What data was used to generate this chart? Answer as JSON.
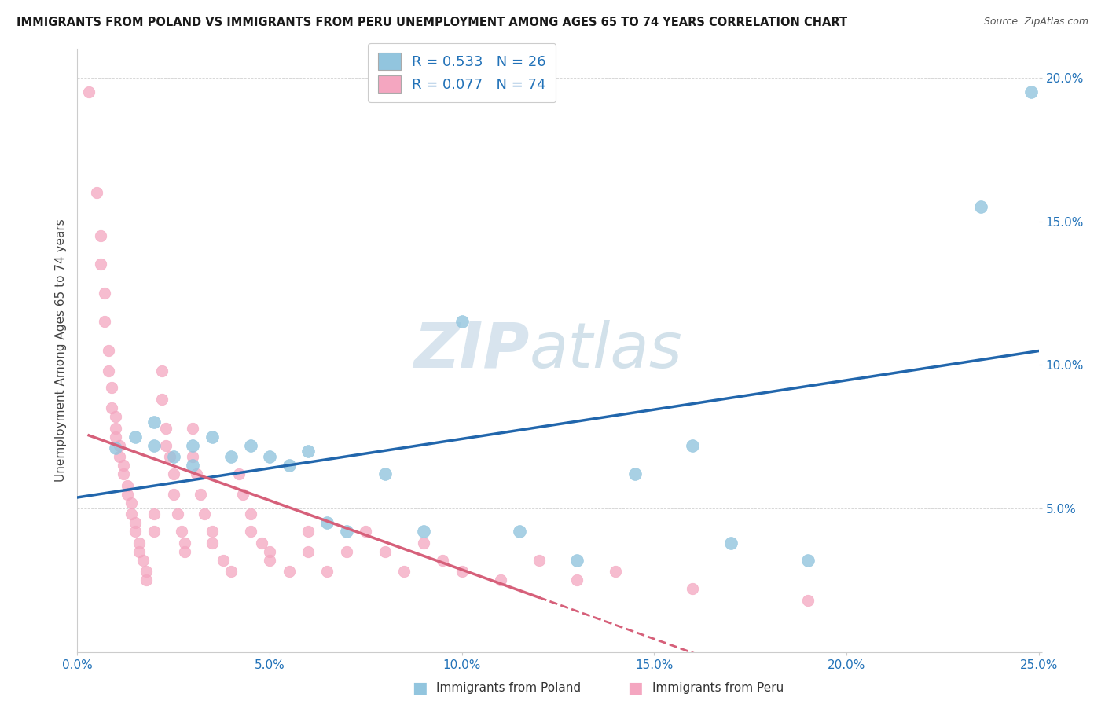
{
  "title": "IMMIGRANTS FROM POLAND VS IMMIGRANTS FROM PERU UNEMPLOYMENT AMONG AGES 65 TO 74 YEARS CORRELATION CHART",
  "source": "Source: ZipAtlas.com",
  "ylabel": "Unemployment Among Ages 65 to 74 years",
  "legend_label_blue": "Immigrants from Poland",
  "legend_label_pink": "Immigrants from Peru",
  "R_blue": 0.533,
  "N_blue": 26,
  "R_pink": 0.077,
  "N_pink": 74,
  "xlim": [
    0,
    0.25
  ],
  "ylim": [
    0,
    0.21
  ],
  "xticks": [
    0.0,
    0.05,
    0.1,
    0.15,
    0.2,
    0.25
  ],
  "yticks": [
    0.0,
    0.05,
    0.1,
    0.15,
    0.2
  ],
  "xtick_labels": [
    "0.0%",
    "5.0%",
    "10.0%",
    "15.0%",
    "20.0%",
    "25.0%"
  ],
  "ytick_labels": [
    "",
    "5.0%",
    "10.0%",
    "15.0%",
    "20.0%"
  ],
  "color_blue": "#92c5de",
  "color_pink": "#f4a6c0",
  "trendline_blue": "#2166ac",
  "trendline_pink": "#d6607a",
  "watermark_zip": "ZIP",
  "watermark_atlas": "atlas",
  "background_color": "#ffffff",
  "blue_points": [
    [
      0.01,
      0.071
    ],
    [
      0.015,
      0.075
    ],
    [
      0.02,
      0.072
    ],
    [
      0.02,
      0.08
    ],
    [
      0.025,
      0.068
    ],
    [
      0.03,
      0.072
    ],
    [
      0.03,
      0.065
    ],
    [
      0.035,
      0.075
    ],
    [
      0.04,
      0.068
    ],
    [
      0.045,
      0.072
    ],
    [
      0.05,
      0.068
    ],
    [
      0.055,
      0.065
    ],
    [
      0.06,
      0.07
    ],
    [
      0.065,
      0.045
    ],
    [
      0.07,
      0.042
    ],
    [
      0.08,
      0.062
    ],
    [
      0.09,
      0.042
    ],
    [
      0.1,
      0.115
    ],
    [
      0.115,
      0.042
    ],
    [
      0.13,
      0.032
    ],
    [
      0.145,
      0.062
    ],
    [
      0.16,
      0.072
    ],
    [
      0.17,
      0.038
    ],
    [
      0.19,
      0.032
    ],
    [
      0.235,
      0.155
    ],
    [
      0.248,
      0.195
    ]
  ],
  "pink_points": [
    [
      0.003,
      0.195
    ],
    [
      0.005,
      0.16
    ],
    [
      0.006,
      0.145
    ],
    [
      0.006,
      0.135
    ],
    [
      0.007,
      0.125
    ],
    [
      0.007,
      0.115
    ],
    [
      0.008,
      0.105
    ],
    [
      0.008,
      0.098
    ],
    [
      0.009,
      0.092
    ],
    [
      0.009,
      0.085
    ],
    [
      0.01,
      0.082
    ],
    [
      0.01,
      0.078
    ],
    [
      0.01,
      0.075
    ],
    [
      0.011,
      0.072
    ],
    [
      0.011,
      0.068
    ],
    [
      0.012,
      0.065
    ],
    [
      0.012,
      0.062
    ],
    [
      0.013,
      0.058
    ],
    [
      0.013,
      0.055
    ],
    [
      0.014,
      0.052
    ],
    [
      0.014,
      0.048
    ],
    [
      0.015,
      0.045
    ],
    [
      0.015,
      0.042
    ],
    [
      0.016,
      0.038
    ],
    [
      0.016,
      0.035
    ],
    [
      0.017,
      0.032
    ],
    [
      0.018,
      0.028
    ],
    [
      0.018,
      0.025
    ],
    [
      0.02,
      0.048
    ],
    [
      0.02,
      0.042
    ],
    [
      0.022,
      0.098
    ],
    [
      0.022,
      0.088
    ],
    [
      0.023,
      0.078
    ],
    [
      0.023,
      0.072
    ],
    [
      0.024,
      0.068
    ],
    [
      0.025,
      0.062
    ],
    [
      0.025,
      0.055
    ],
    [
      0.026,
      0.048
    ],
    [
      0.027,
      0.042
    ],
    [
      0.028,
      0.038
    ],
    [
      0.028,
      0.035
    ],
    [
      0.03,
      0.078
    ],
    [
      0.03,
      0.068
    ],
    [
      0.031,
      0.062
    ],
    [
      0.032,
      0.055
    ],
    [
      0.033,
      0.048
    ],
    [
      0.035,
      0.042
    ],
    [
      0.035,
      0.038
    ],
    [
      0.038,
      0.032
    ],
    [
      0.04,
      0.028
    ],
    [
      0.042,
      0.062
    ],
    [
      0.043,
      0.055
    ],
    [
      0.045,
      0.048
    ],
    [
      0.045,
      0.042
    ],
    [
      0.048,
      0.038
    ],
    [
      0.05,
      0.035
    ],
    [
      0.05,
      0.032
    ],
    [
      0.055,
      0.028
    ],
    [
      0.06,
      0.042
    ],
    [
      0.06,
      0.035
    ],
    [
      0.065,
      0.028
    ],
    [
      0.07,
      0.035
    ],
    [
      0.075,
      0.042
    ],
    [
      0.08,
      0.035
    ],
    [
      0.085,
      0.028
    ],
    [
      0.09,
      0.038
    ],
    [
      0.095,
      0.032
    ],
    [
      0.1,
      0.028
    ],
    [
      0.11,
      0.025
    ],
    [
      0.12,
      0.032
    ],
    [
      0.13,
      0.025
    ],
    [
      0.14,
      0.028
    ],
    [
      0.16,
      0.022
    ],
    [
      0.19,
      0.018
    ]
  ]
}
